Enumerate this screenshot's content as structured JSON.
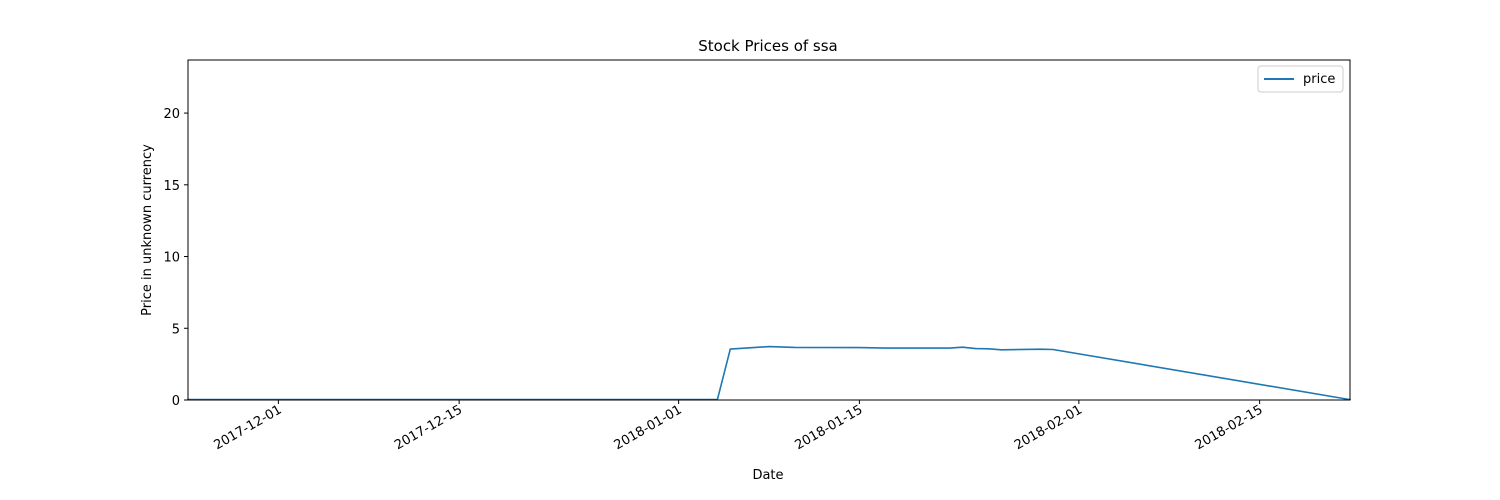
{
  "chart_data": {
    "type": "line",
    "title": "Stock Prices of ssa",
    "xlabel": "Date",
    "ylabel": "Price in unknown currency",
    "xlim": [
      "2017-11-24",
      "2018-02-22"
    ],
    "ylim": [
      0,
      23.7
    ],
    "xticks": [
      "2017-12-01",
      "2017-12-15",
      "2018-01-01",
      "2018-01-15",
      "2018-02-01",
      "2018-02-15"
    ],
    "yticks": [
      0,
      5,
      10,
      15,
      20
    ],
    "legend_position": "top-right",
    "grid": false,
    "series": [
      {
        "name": "price",
        "color": "#1f77b4",
        "points": [
          [
            "2017-11-24",
            0.03
          ],
          [
            "2017-12-01",
            0.03
          ],
          [
            "2017-12-08",
            0.03
          ],
          [
            "2017-12-15",
            0.03
          ],
          [
            "2017-12-22",
            0.03
          ],
          [
            "2017-12-29",
            0.03
          ],
          [
            "2018-01-03",
            0.03
          ],
          [
            "2018-01-04",
            0.03
          ],
          [
            "2018-01-05",
            3.55
          ],
          [
            "2018-01-08",
            3.72
          ],
          [
            "2018-01-10",
            3.67
          ],
          [
            "2018-01-15",
            3.65
          ],
          [
            "2018-01-17",
            3.62
          ],
          [
            "2018-01-22",
            3.62
          ],
          [
            "2018-01-23",
            3.68
          ],
          [
            "2018-01-24",
            3.58
          ],
          [
            "2018-01-25",
            3.57
          ],
          [
            "2018-01-26",
            3.5
          ],
          [
            "2018-01-29",
            3.54
          ],
          [
            "2018-01-30",
            3.52
          ],
          [
            "2018-02-22",
            0.03
          ]
        ]
      }
    ]
  }
}
